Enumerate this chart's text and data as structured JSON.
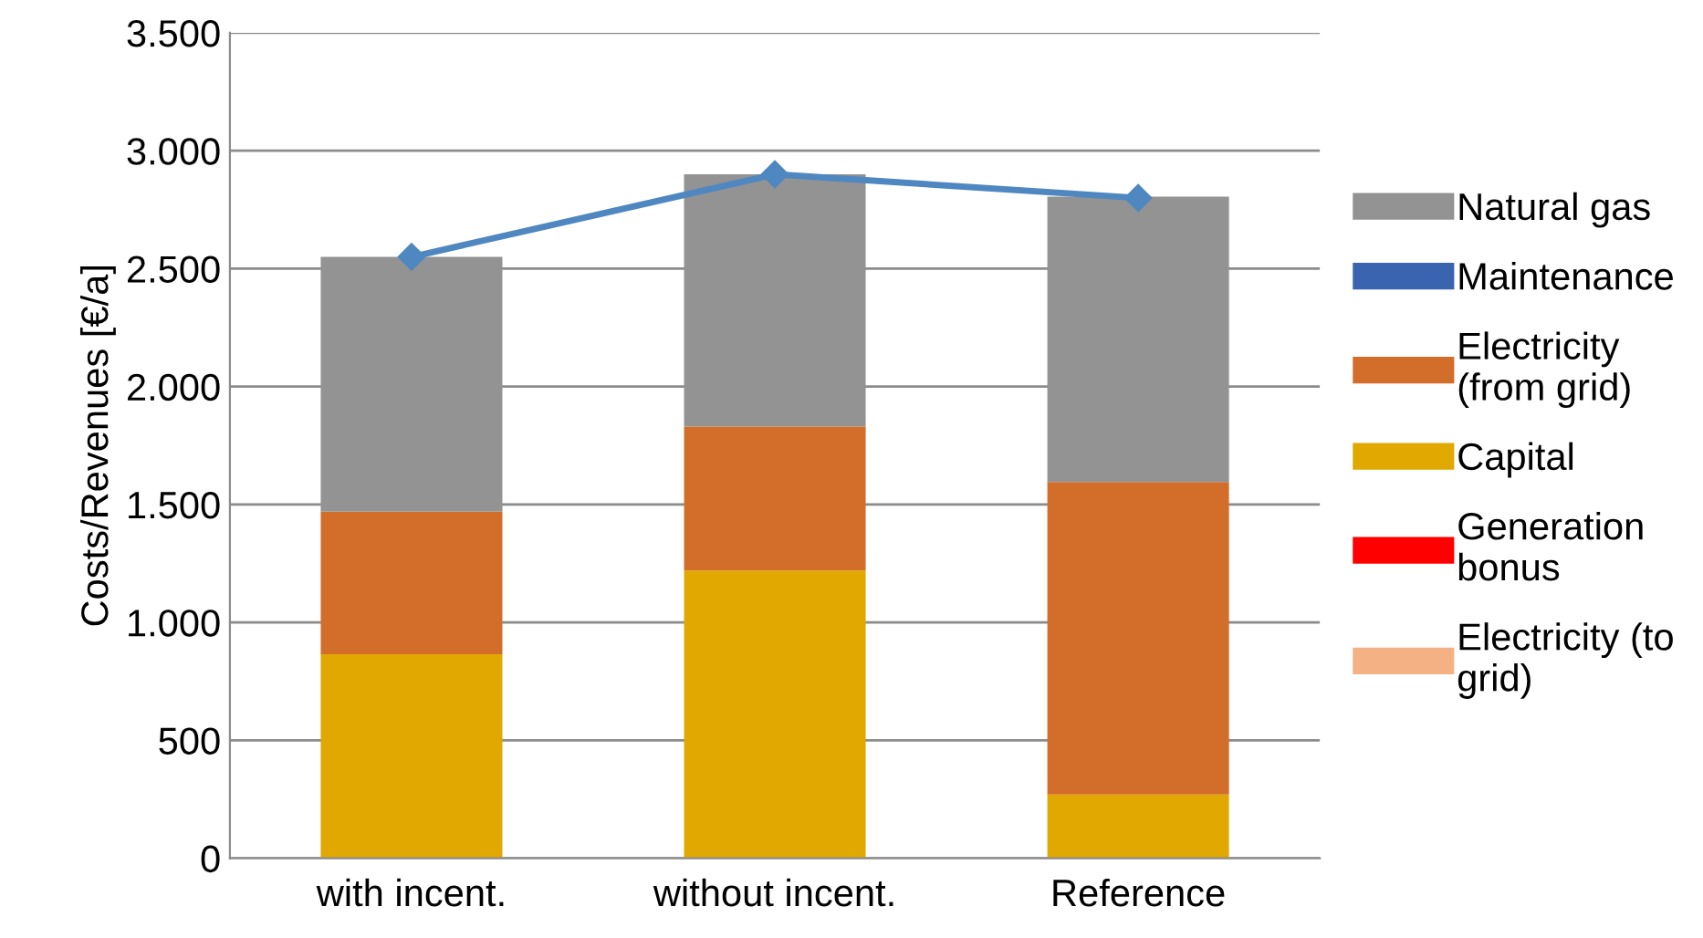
{
  "chart_data": {
    "type": "bar",
    "stacked": true,
    "ylabel": "Costs/Revenues [€/a]",
    "categories": [
      "with incent.",
      "without incent.",
      "Reference"
    ],
    "series": [
      {
        "name": "Electricity (to\ngrid)",
        "color": "#f4b183",
        "values": [
          0,
          0,
          0
        ]
      },
      {
        "name": "Generation\nbonus",
        "color": "#ff0000",
        "values": [
          0,
          0,
          0
        ]
      },
      {
        "name": "Capital",
        "color": "#e0a800",
        "values": [
          865,
          1220,
          270
        ]
      },
      {
        "name": "Electricity\n(from grid)",
        "color": "#d36d2a",
        "values": [
          605,
          610,
          1325
        ]
      },
      {
        "name": "Maintenance",
        "color": "#3a64b0",
        "values": [
          0,
          0,
          0
        ]
      },
      {
        "name": "Natural gas",
        "color": "#939393",
        "values": [
          1080,
          1070,
          1210
        ]
      },
      {
        "type": "line",
        "color": "#4f87c0",
        "marker": "diamond",
        "values": [
          2550,
          2900,
          2800
        ]
      }
    ],
    "ylim": [
      0,
      3500
    ],
    "yticks": [
      {
        "value": 0,
        "label": "0"
      },
      {
        "value": 500,
        "label": "500"
      },
      {
        "value": 1000,
        "label": "1.000"
      },
      {
        "value": 1500,
        "label": "1.500"
      },
      {
        "value": 2000,
        "label": "2.000"
      },
      {
        "value": 2500,
        "label": "2.500"
      },
      {
        "value": 3000,
        "label": "3.000"
      },
      {
        "value": 3500,
        "label": "3.500"
      }
    ],
    "grid": "y",
    "legend": "right"
  }
}
